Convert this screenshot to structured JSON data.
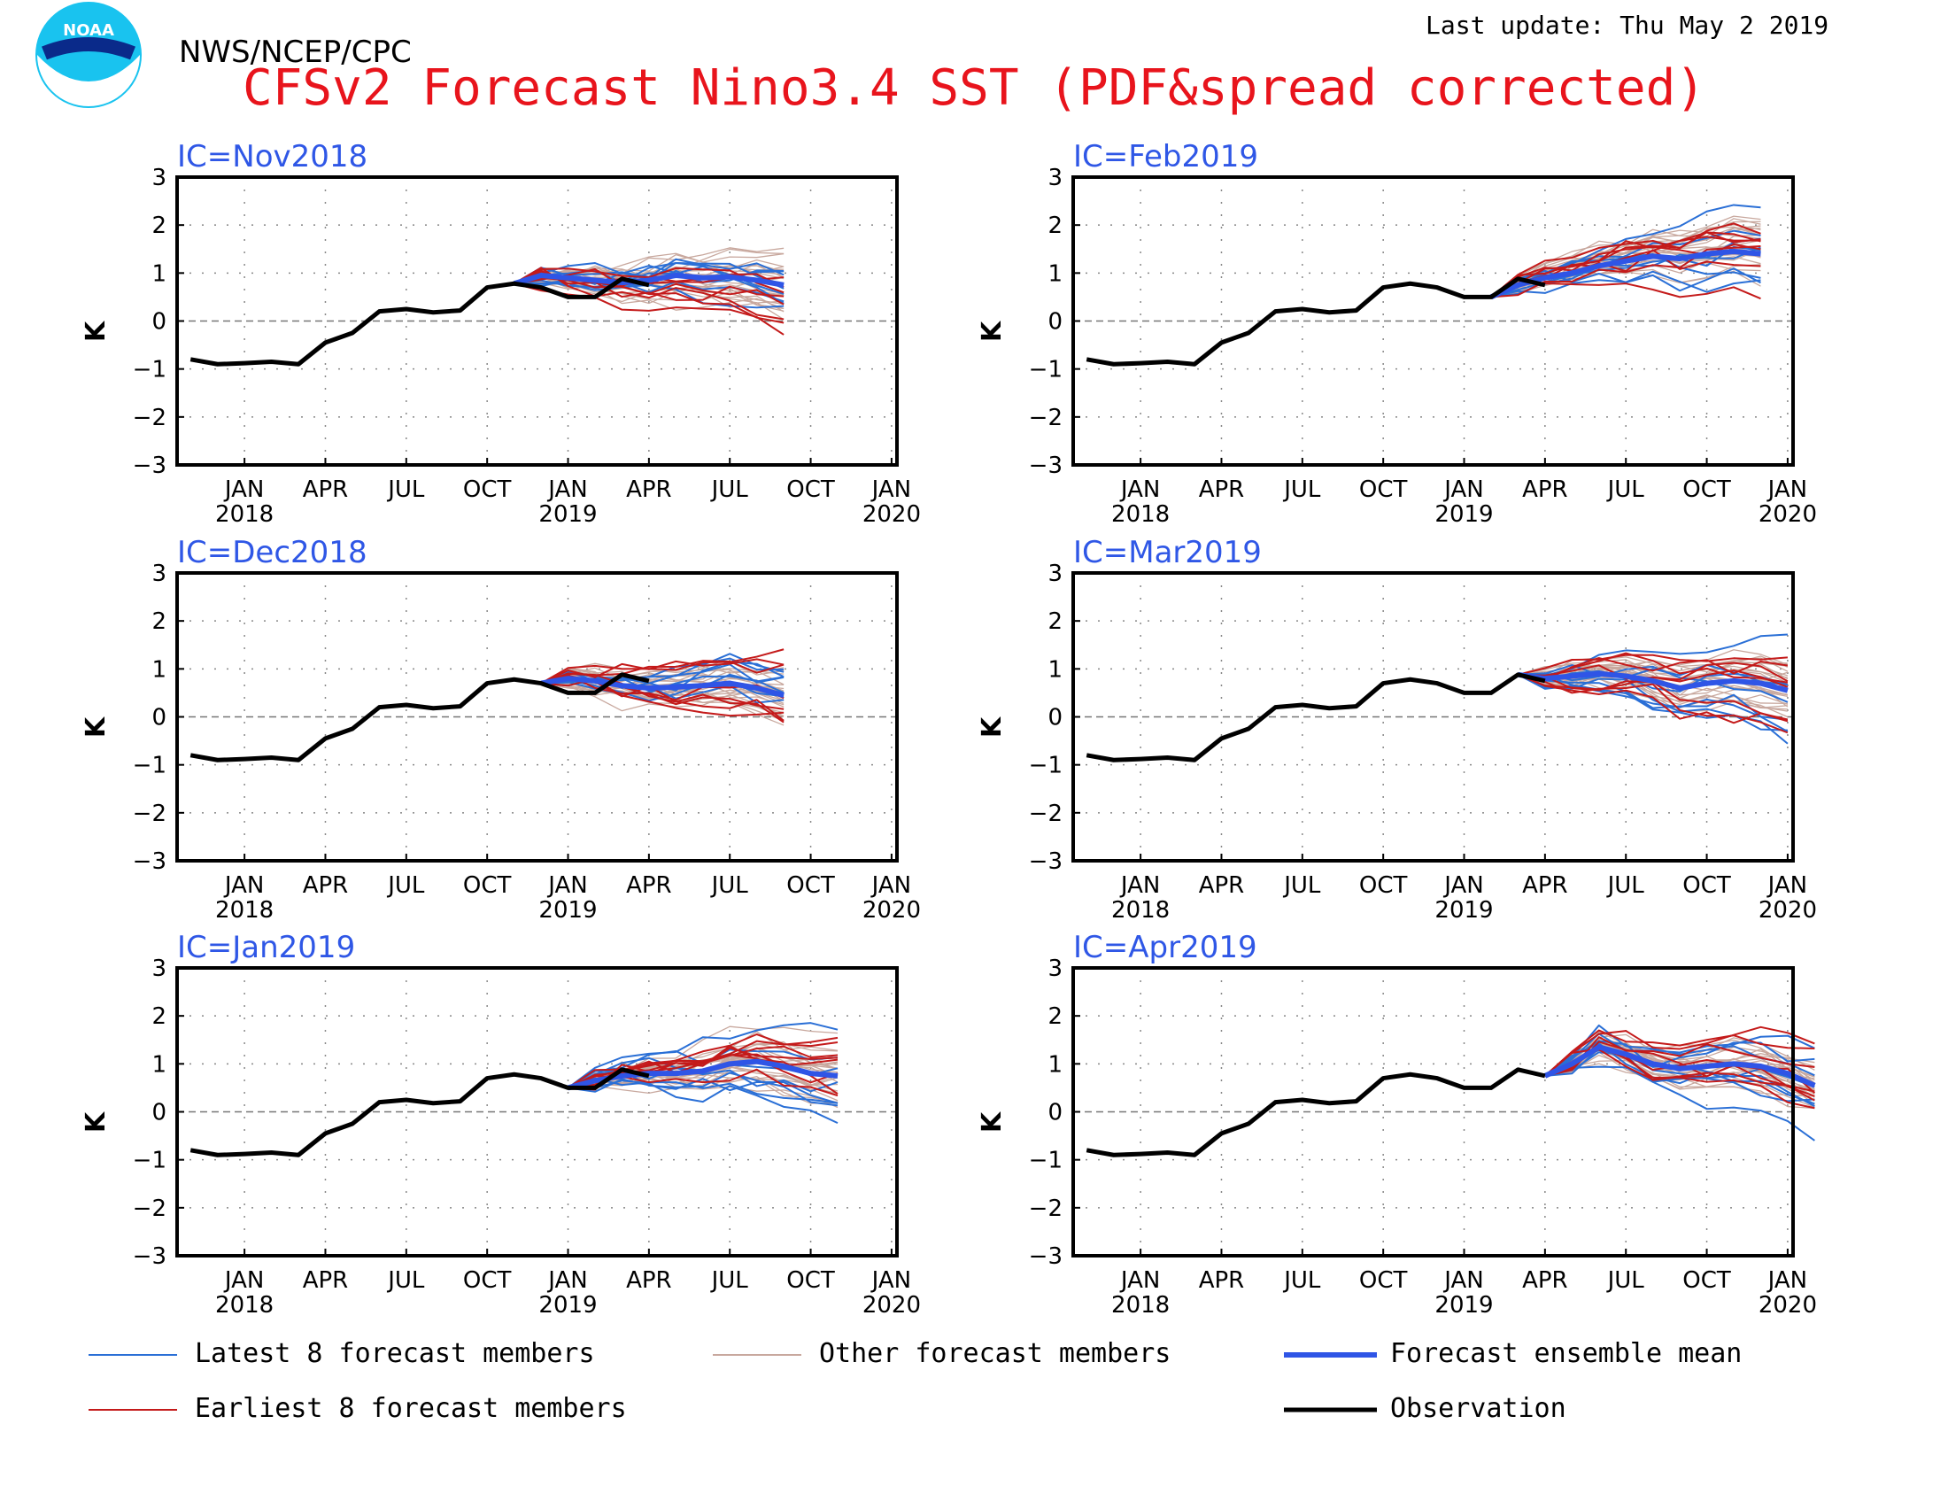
{
  "header": {
    "agency": "NWS/NCEP/CPC",
    "title": "CFSv2 Forecast Nino3.4 SST (PDF&spread corrected)",
    "last_update": "Last update: Thu May 2 2019",
    "logo_text": "NOAA"
  },
  "colors": {
    "title": "#e8141c",
    "panel_title": "#2f57e6",
    "latest": "#2a6fd6",
    "earliest": "#c41a1a",
    "other": "#c8a89e",
    "mean": "#2f55e6",
    "observation": "#000000"
  },
  "legend": {
    "latest": "Latest 8 forecast members",
    "other": "Other forecast members",
    "mean": "Forecast ensemble mean",
    "earliest": "Earliest 8 forecast members",
    "observation": "Observation"
  },
  "chart_data": {
    "type": "line",
    "ylabel": "K",
    "ylim": [
      -3,
      3
    ],
    "yticks": [
      "3",
      "2",
      "1",
      "0",
      "−1",
      "−2",
      "−3"
    ],
    "x_ticks": [
      {
        "month": "JAN",
        "year": "2018"
      },
      {
        "month": "APR",
        "year": ""
      },
      {
        "month": "JUL",
        "year": ""
      },
      {
        "month": "OCT",
        "year": ""
      },
      {
        "month": "JAN",
        "year": "2019"
      },
      {
        "month": "APR",
        "year": ""
      },
      {
        "month": "JUL",
        "year": ""
      },
      {
        "month": "OCT",
        "year": ""
      },
      {
        "month": "JAN",
        "year": "2020"
      }
    ],
    "x_months_from": "Nov 2017",
    "observation": {
      "x": [
        "Nov 2017",
        "Dec 2017",
        "Jan 2018",
        "Feb 2018",
        "Mar 2018",
        "Apr 2018",
        "May 2018",
        "Jun 2018",
        "Jul 2018",
        "Aug 2018",
        "Sep 2018",
        "Oct 2018",
        "Nov 2018",
        "Dec 2018",
        "Jan 2019",
        "Feb 2019",
        "Mar 2019",
        "Apr 2019"
      ],
      "values": [
        -0.8,
        -0.9,
        -0.88,
        -0.85,
        -0.9,
        -0.45,
        -0.25,
        0.2,
        0.25,
        0.18,
        0.22,
        0.7,
        0.78,
        0.7,
        0.5,
        0.5,
        0.88,
        0.75
      ]
    },
    "panels": [
      {
        "ic": "IC=Nov2018",
        "mean": [
          0.78,
          0.95,
          0.9,
          0.85,
          0.8,
          0.85,
          0.95,
          0.9,
          0.92,
          0.85,
          0.75
        ]
      },
      {
        "ic": "IC=Dec2018",
        "mean": [
          0.7,
          0.8,
          0.75,
          0.65,
          0.6,
          0.62,
          0.65,
          0.7,
          0.6,
          0.45
        ]
      },
      {
        "ic": "IC=Jan2019",
        "mean": [
          0.5,
          0.65,
          0.75,
          0.8,
          0.8,
          0.85,
          1.0,
          1.05,
          0.95,
          0.8,
          0.75
        ]
      },
      {
        "ic": "IC=Feb2019",
        "mean": [
          0.5,
          0.75,
          0.9,
          1.0,
          1.15,
          1.25,
          1.35,
          1.3,
          1.4,
          1.45,
          1.4
        ]
      },
      {
        "ic": "IC=Mar2019",
        "mean": [
          0.88,
          0.8,
          0.85,
          0.9,
          0.85,
          0.75,
          0.6,
          0.7,
          0.75,
          0.7,
          0.55
        ]
      },
      {
        "ic": "IC=Apr2019",
        "mean": [
          0.75,
          1.0,
          1.35,
          1.2,
          1.0,
          0.9,
          0.95,
          1.0,
          0.95,
          0.8,
          0.55
        ]
      }
    ]
  }
}
